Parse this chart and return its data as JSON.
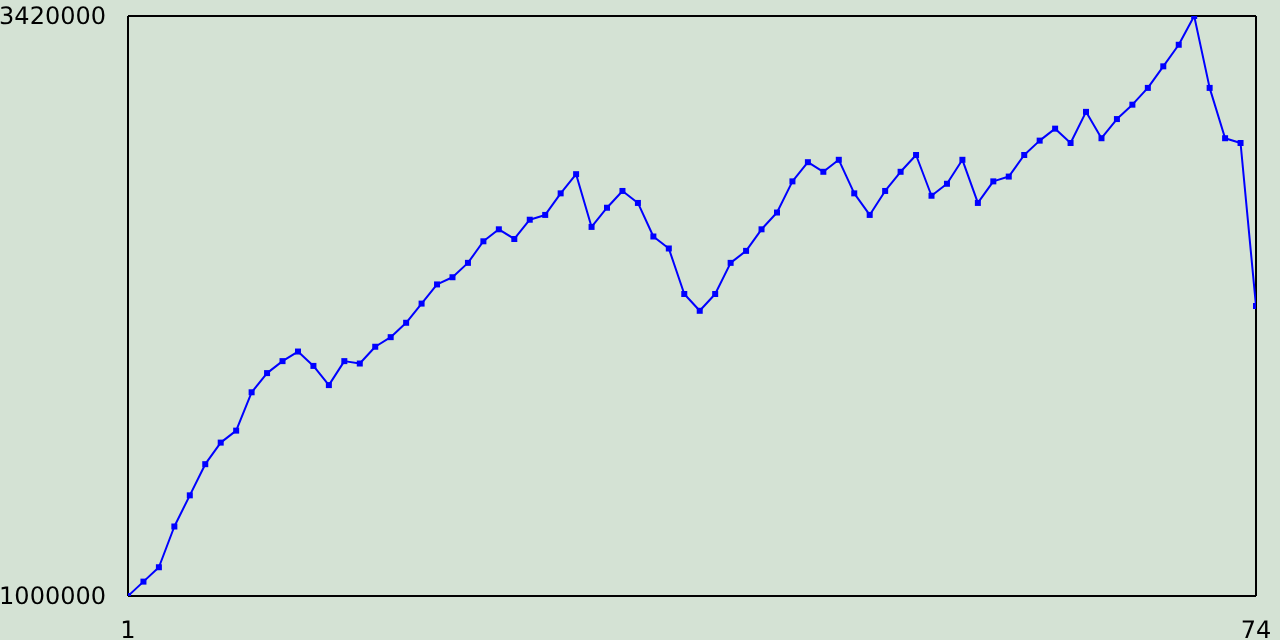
{
  "chart_data": {
    "type": "line",
    "xlim": [
      1,
      74
    ],
    "xticks": [
      1,
      74
    ],
    "ylim": [
      1000000,
      3420000
    ],
    "yticks": [
      1000000,
      3420000
    ],
    "marker": "square",
    "x": [
      1,
      2,
      3,
      4,
      5,
      6,
      7,
      8,
      9,
      10,
      11,
      12,
      13,
      14,
      15,
      16,
      17,
      18,
      19,
      20,
      21,
      22,
      23,
      24,
      25,
      26,
      27,
      28,
      29,
      30,
      31,
      32,
      33,
      34,
      35,
      36,
      37,
      38,
      39,
      40,
      41,
      42,
      43,
      44,
      45,
      46,
      47,
      48,
      49,
      50,
      51,
      52,
      53,
      54,
      55,
      56,
      57,
      58,
      59,
      60,
      61,
      62,
      63,
      64,
      65,
      66,
      67,
      68,
      69,
      70,
      71,
      72,
      73,
      74
    ],
    "series": [
      {
        "color": "#0000ff",
        "values": [
          1000000,
          1060000,
          1120000,
          1290000,
          1420000,
          1550000,
          1640000,
          1690000,
          1850000,
          1930000,
          1980000,
          2020000,
          1960000,
          1880000,
          1980000,
          1970000,
          2040000,
          2080000,
          2140000,
          2220000,
          2300000,
          2330000,
          2390000,
          2480000,
          2530000,
          2490000,
          2570000,
          2590000,
          2680000,
          2760000,
          2540000,
          2620000,
          2690000,
          2640000,
          2500000,
          2450000,
          2260000,
          2190000,
          2260000,
          2390000,
          2440000,
          2530000,
          2600000,
          2730000,
          2810000,
          2770000,
          2820000,
          2680000,
          2590000,
          2690000,
          2770000,
          2840000,
          2670000,
          2720000,
          2820000,
          2640000,
          2730000,
          2750000,
          2840000,
          2900000,
          2950000,
          2890000,
          3020000,
          2910000,
          2990000,
          3050000,
          3120000,
          3210000,
          3300000,
          3420000,
          3120000,
          2910000,
          2890000,
          2210000
        ]
      }
    ]
  }
}
